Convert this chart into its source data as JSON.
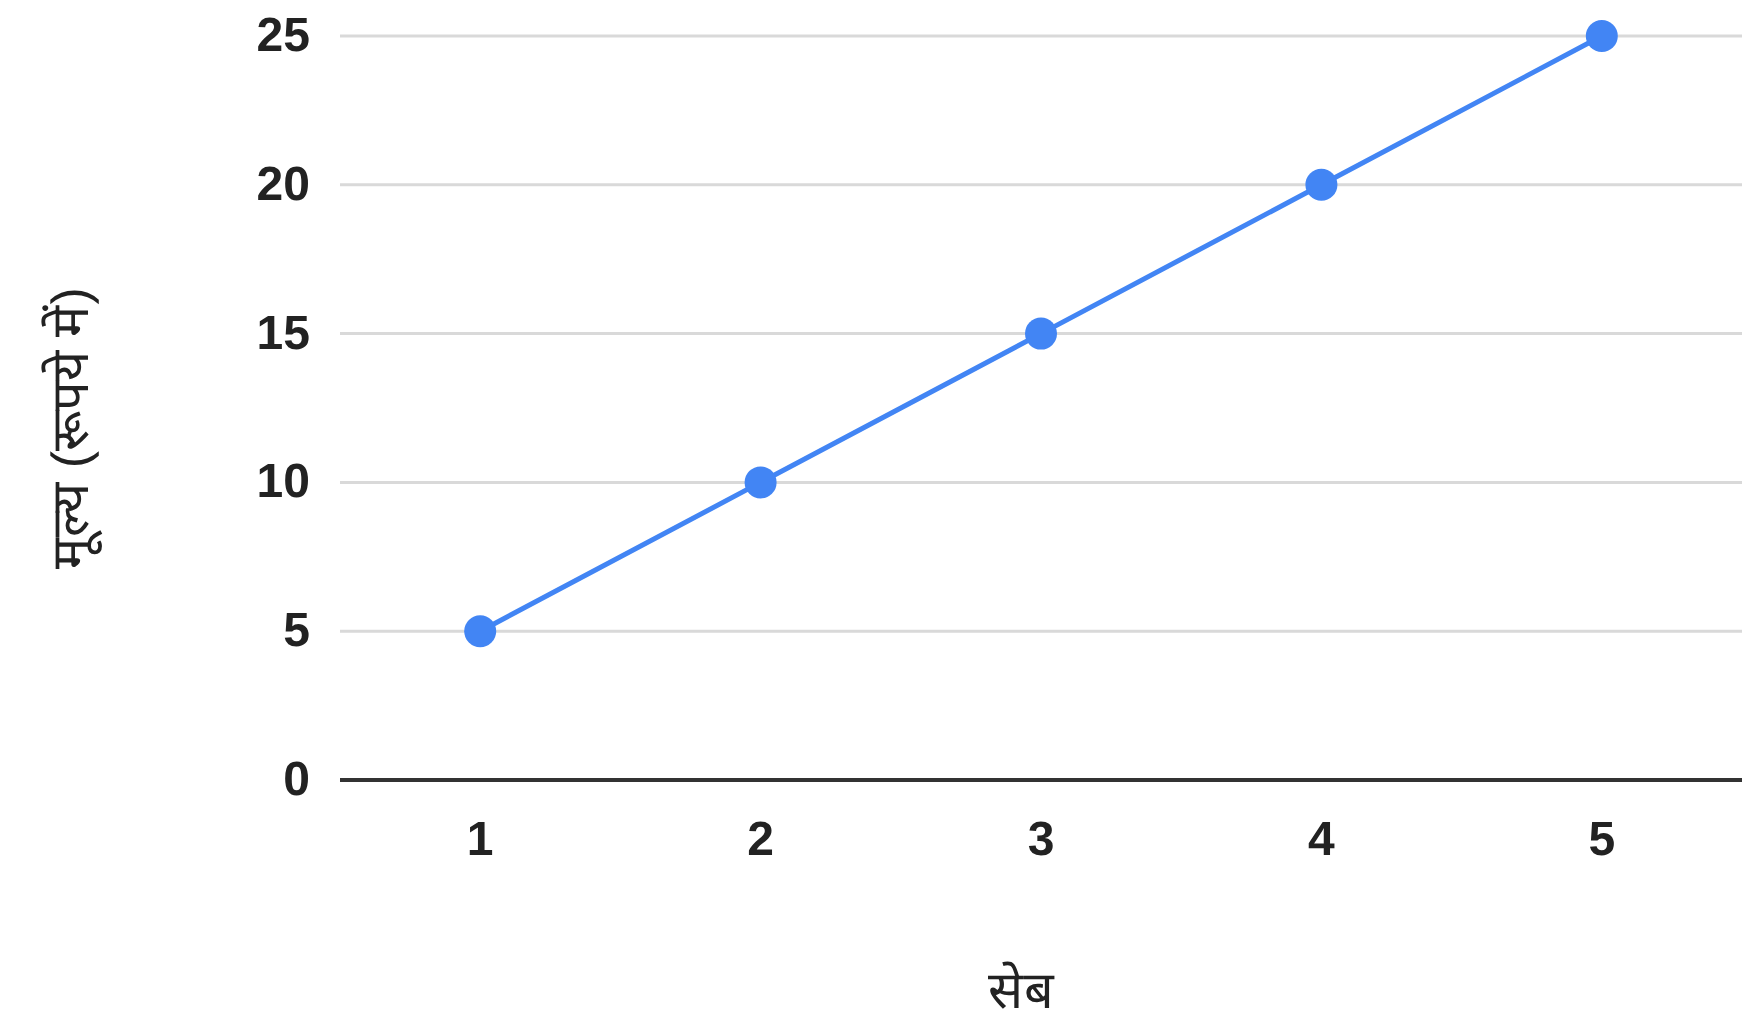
{
  "chart_data": {
    "type": "line",
    "xlabel": "सेब",
    "ylabel": "मूल्य (रूपये में)",
    "categories": [
      "1",
      "2",
      "3",
      "4",
      "5"
    ],
    "series": [
      {
        "color": "#4285f4",
        "values": [
          5,
          10,
          15,
          20,
          25
        ]
      }
    ],
    "ylim": [
      0,
      25
    ],
    "yticks": [
      0,
      5,
      10,
      15,
      20,
      25
    ],
    "grid": "y",
    "marker": "circle",
    "line_style": "solid"
  }
}
